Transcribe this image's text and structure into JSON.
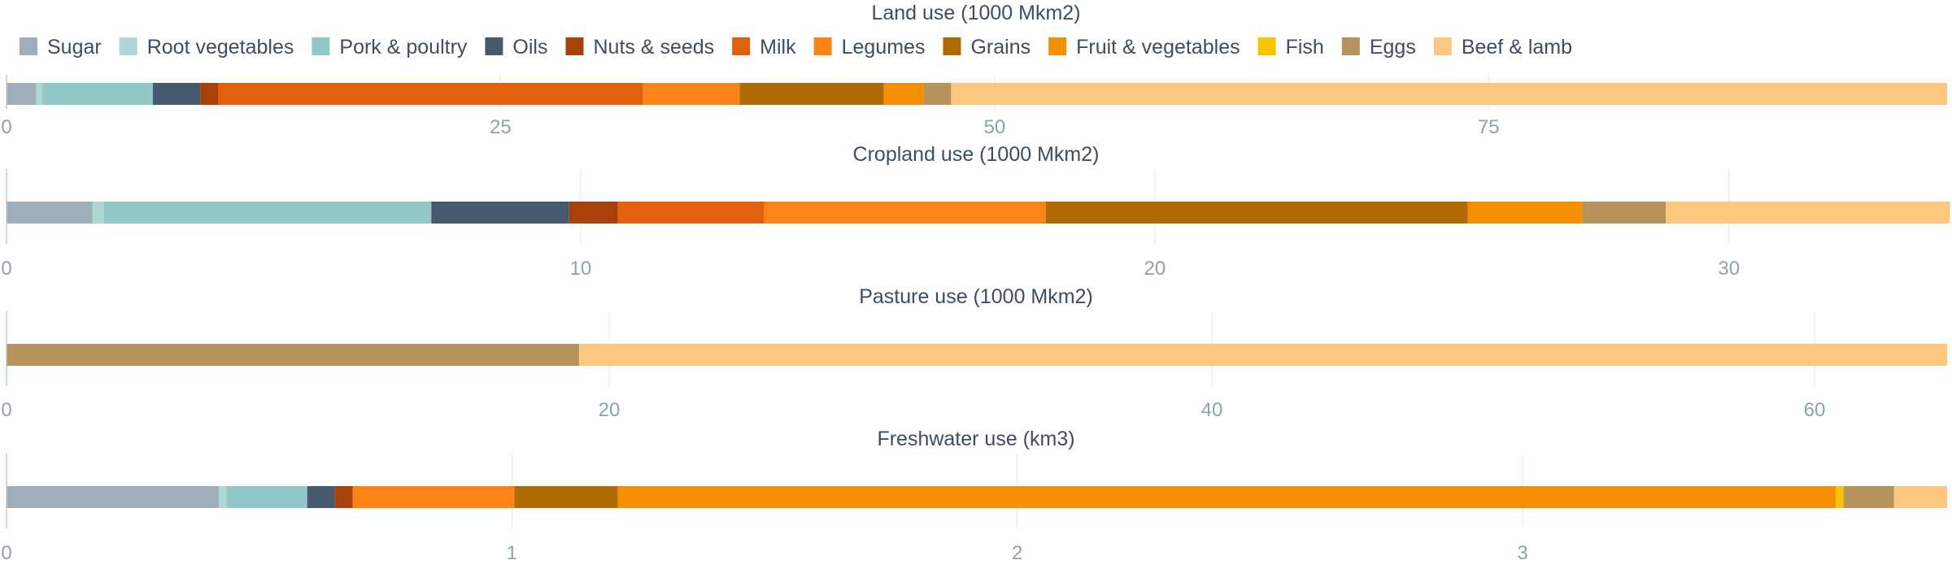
{
  "legend": [
    {
      "name": "Sugar",
      "color": "#a0aebb"
    },
    {
      "name": "Root vegetables",
      "color": "#aed8d4"
    },
    {
      "name": "Pork & poultry",
      "color": "#92c9c8"
    },
    {
      "name": "Oils",
      "color": "#465a6d"
    },
    {
      "name": "Nuts & seeds",
      "color": "#a84108"
    },
    {
      "name": "Milk",
      "color": "#e0600e"
    },
    {
      "name": "Legumes",
      "color": "#fb8318"
    },
    {
      "name": "Grains",
      "color": "#b06b04"
    },
    {
      "name": "Fruit & vegetables",
      "color": "#f48f02"
    },
    {
      "name": "Fish",
      "color": "#f9c300"
    },
    {
      "name": "Eggs",
      "color": "#b6925c"
    },
    {
      "name": "Beef & lamb",
      "color": "#fcc87f"
    }
  ],
  "chart_data": [
    {
      "type": "bar",
      "orientation": "horizontal-stacked",
      "title": "Land use (1000 Mkm2)",
      "xlim": [
        0,
        98.2
      ],
      "ticks": [
        0,
        25,
        50,
        75
      ],
      "tick_labels": [
        "0",
        "25",
        "50",
        "75"
      ],
      "series": [
        {
          "name": "Sugar",
          "value": 1.5
        },
        {
          "name": "Root vegetables",
          "value": 0.3
        },
        {
          "name": "Pork & poultry",
          "value": 5.6
        },
        {
          "name": "Oils",
          "value": 2.4
        },
        {
          "name": "Nuts & seeds",
          "value": 0.9
        },
        {
          "name": "Milk",
          "value": 21.5
        },
        {
          "name": "Legumes",
          "value": 4.9
        },
        {
          "name": "Grains",
          "value": 7.3
        },
        {
          "name": "Fruit & vegetables",
          "value": 2.0
        },
        {
          "name": "Fish",
          "value": 0.0
        },
        {
          "name": "Eggs",
          "value": 1.4
        },
        {
          "name": "Beef & lamb",
          "value": 50.4
        }
      ]
    },
    {
      "type": "bar",
      "orientation": "horizontal-stacked",
      "title": "Cropland use (1000 Mkm2)",
      "xlim": [
        0,
        33.8
      ],
      "ticks": [
        0,
        10,
        20,
        30
      ],
      "tick_labels": [
        "0",
        "10",
        "20",
        "30"
      ],
      "series": [
        {
          "name": "Sugar",
          "value": 1.5
        },
        {
          "name": "Root vegetables",
          "value": 0.2
        },
        {
          "name": "Pork & poultry",
          "value": 5.7
        },
        {
          "name": "Oils",
          "value": 2.4
        },
        {
          "name": "Nuts & seeds",
          "value": 0.85
        },
        {
          "name": "Milk",
          "value": 2.55
        },
        {
          "name": "Legumes",
          "value": 4.9
        },
        {
          "name": "Grains",
          "value": 7.35
        },
        {
          "name": "Fruit & vegetables",
          "value": 2.0
        },
        {
          "name": "Fish",
          "value": 0.0
        },
        {
          "name": "Eggs",
          "value": 1.45
        },
        {
          "name": "Beef & lamb",
          "value": 4.95
        }
      ]
    },
    {
      "type": "bar",
      "orientation": "horizontal-stacked",
      "title": "Pasture use (1000 Mkm2)",
      "xlim": [
        0,
        64.4
      ],
      "ticks": [
        0,
        20,
        40,
        60
      ],
      "tick_labels": [
        "0",
        "20",
        "40",
        "60"
      ],
      "series": [
        {
          "name": "Eggs",
          "value": 19.0
        },
        {
          "name": "Beef & lamb",
          "value": 45.4
        }
      ]
    },
    {
      "type": "bar",
      "orientation": "horizontal-stacked",
      "title": "Freshwater use (km3)",
      "xlim": [
        0,
        3.84
      ],
      "ticks": [
        0,
        1,
        2,
        3
      ],
      "tick_labels": [
        "0",
        "1",
        "2",
        "3"
      ],
      "series": [
        {
          "name": "Sugar",
          "value": 0.42
        },
        {
          "name": "Root vegetables",
          "value": 0.015
        },
        {
          "name": "Pork & poultry",
          "value": 0.16
        },
        {
          "name": "Oils",
          "value": 0.055
        },
        {
          "name": "Nuts & seeds",
          "value": 0.035
        },
        {
          "name": "Legumes",
          "value": 0.32
        },
        {
          "name": "Grains",
          "value": 0.205
        },
        {
          "name": "Fruit & vegetables",
          "value": 2.41
        },
        {
          "name": "Fish",
          "value": 0.015
        },
        {
          "name": "Eggs",
          "value": 0.1
        },
        {
          "name": "Beef & lamb",
          "value": 0.105
        }
      ]
    }
  ]
}
